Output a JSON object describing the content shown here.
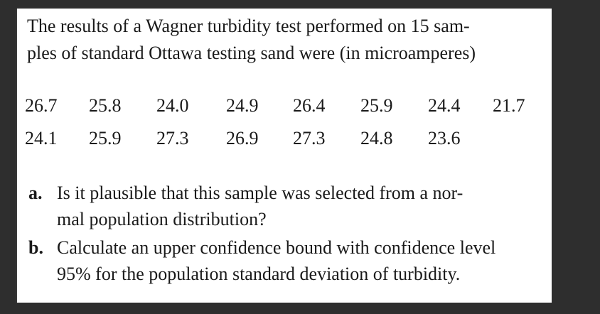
{
  "intro": {
    "lines": [
      "The results of a Wagner turbidity test performed on 15 sam-",
      "ples of standard Ottawa testing sand were (in microamperes)"
    ]
  },
  "data": {
    "rows": [
      [
        "26.7",
        "25.8",
        "24.0",
        "24.9",
        "26.4",
        "25.9",
        "24.4",
        "21.7"
      ],
      [
        "24.1",
        "25.9",
        "27.3",
        "26.9",
        "27.3",
        "24.8",
        "23.6"
      ]
    ]
  },
  "items": [
    {
      "label": "a.",
      "lines": [
        "Is it plausible that this sample was selected from a nor-",
        "mal population distribution?"
      ]
    },
    {
      "label": "b.",
      "lines": [
        "Calculate an upper confidence bound with confidence level",
        "95% for the population standard deviation of turbidity."
      ]
    }
  ]
}
